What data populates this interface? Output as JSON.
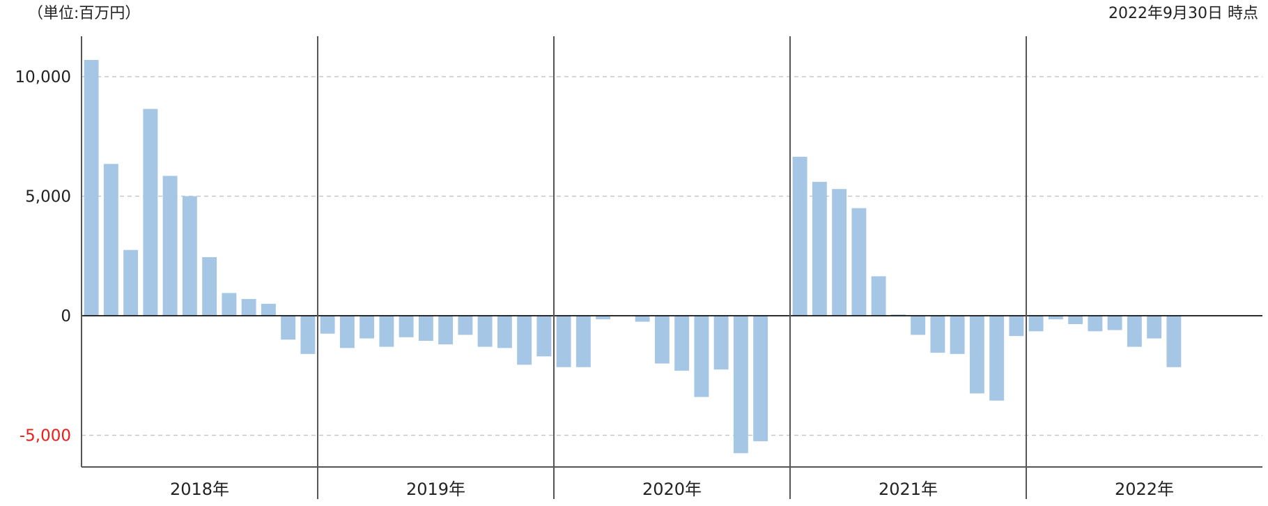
{
  "chart_data": {
    "type": "bar",
    "unit_label": "（単位:百万円）",
    "as_of_label": "2022年9月30日 時点",
    "y_ticks": [
      {
        "value": 10000,
        "label": "10,000"
      },
      {
        "value": 5000,
        "label": "5,000"
      },
      {
        "value": 0,
        "label": "0"
      },
      {
        "value": -5000,
        "label": "-5,000"
      }
    ],
    "ylim": [
      -6400,
      11700
    ],
    "grid": "dashed-horizontal",
    "colors": {
      "bar": "#a6c6e5",
      "negative_tick": "#e8201a",
      "axis": "#555555",
      "grid": "#c8c8c8",
      "zero_line": "#111111"
    },
    "years": [
      {
        "label": "2018年",
        "values": [
          10700,
          6350,
          2750,
          8650,
          5850,
          5000,
          2450,
          950,
          700,
          500,
          -1000,
          -1600
        ]
      },
      {
        "label": "2019年",
        "values": [
          -750,
          -1350,
          -950,
          -1300,
          -900,
          -1050,
          -1200,
          -800,
          -1300,
          -1350,
          -2050,
          -1700
        ]
      },
      {
        "label": "2020年",
        "values": [
          -2150,
          -2150,
          -150,
          null,
          -250,
          -2000,
          -2300,
          -3400,
          -2250,
          -5750,
          -5250,
          null
        ]
      },
      {
        "label": "2021年",
        "values": [
          6650,
          5600,
          5300,
          4500,
          1650,
          50,
          -800,
          -1550,
          -1600,
          -3250,
          -3550,
          -850
        ]
      },
      {
        "label": "2022年",
        "values": [
          -650,
          -150,
          -350,
          -650,
          -600,
          -1300,
          -950,
          -2150,
          null,
          null,
          null,
          null
        ]
      }
    ]
  }
}
